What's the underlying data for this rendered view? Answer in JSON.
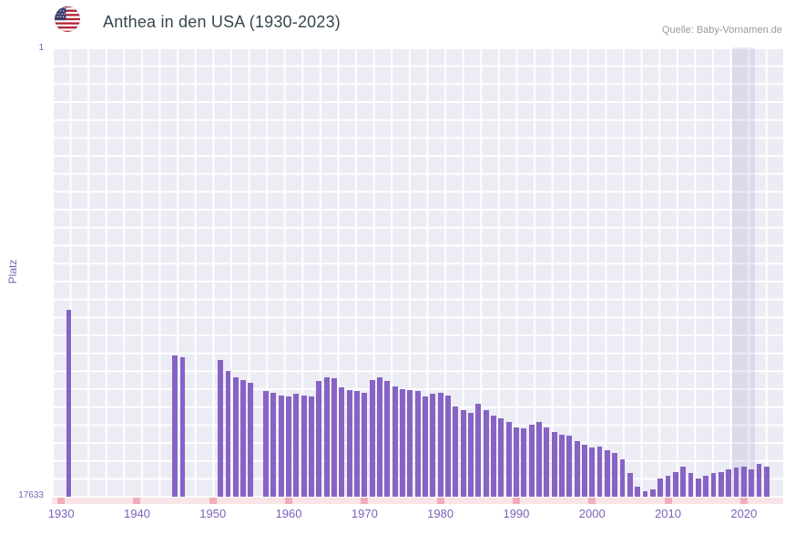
{
  "header": {
    "title": "Anthea in den USA (1930-2023)",
    "source": "Quelle: Baby-Vornamen.de"
  },
  "axis": {
    "y_label": "Platz",
    "y_tick_top": "1",
    "y_tick_bottom": "17633",
    "x_ticks": [
      1930,
      1940,
      1950,
      1960,
      1970,
      1980,
      1990,
      2000,
      2010,
      2020
    ]
  },
  "colors": {
    "bar": "#8763c4",
    "plot_bg": "#ececf5",
    "grid": "#ffffff",
    "axis_text": "#7d62b8",
    "tick_strip": "#f9e4e7",
    "tick_mark": "#f1aeba",
    "highlight_band": "rgba(122,115,176,0.14)",
    "title": "#37474f",
    "source": "#999999",
    "flag_red": "#b22234",
    "flag_blue": "#3c3b6e"
  },
  "chart_data": {
    "type": "bar",
    "title": "Anthea in den USA (1930-2023)",
    "xlabel": "",
    "ylabel": "Platz",
    "ylim": [
      1,
      17633
    ],
    "y_axis_inverted": true,
    "grid": true,
    "legend": false,
    "highlight_years": {
      "from": 2019,
      "to": 2021
    },
    "x": [
      1930,
      1931,
      1932,
      1933,
      1934,
      1935,
      1936,
      1937,
      1938,
      1939,
      1940,
      1941,
      1942,
      1943,
      1944,
      1945,
      1946,
      1947,
      1948,
      1949,
      1950,
      1951,
      1952,
      1953,
      1954,
      1955,
      1956,
      1957,
      1958,
      1959,
      1960,
      1961,
      1962,
      1963,
      1964,
      1965,
      1966,
      1967,
      1968,
      1969,
      1970,
      1971,
      1972,
      1973,
      1974,
      1975,
      1976,
      1977,
      1978,
      1979,
      1980,
      1981,
      1982,
      1983,
      1984,
      1985,
      1986,
      1987,
      1988,
      1989,
      1990,
      1991,
      1992,
      1993,
      1994,
      1995,
      1996,
      1997,
      1998,
      1999,
      2000,
      2001,
      2002,
      2003,
      2004,
      2005,
      2006,
      2007,
      2008,
      2009,
      2010,
      2011,
      2012,
      2013,
      2014,
      2015,
      2016,
      2017,
      2018,
      2019,
      2020,
      2021,
      2022,
      2023
    ],
    "values": [
      null,
      10300,
      null,
      null,
      null,
      null,
      null,
      null,
      null,
      null,
      null,
      null,
      null,
      null,
      null,
      12100,
      12150,
      null,
      null,
      null,
      null,
      12250,
      12700,
      12950,
      13050,
      13150,
      null,
      13500,
      13550,
      13650,
      13700,
      13600,
      13650,
      13700,
      13100,
      12950,
      13000,
      13350,
      13450,
      13500,
      13550,
      13050,
      12950,
      13100,
      13300,
      13400,
      13450,
      13500,
      13700,
      13600,
      13550,
      13650,
      14100,
      14250,
      14350,
      14000,
      14250,
      14450,
      14550,
      14700,
      14900,
      14950,
      14800,
      14700,
      14900,
      15100,
      15200,
      15250,
      15450,
      15600,
      15700,
      15650,
      15800,
      15900,
      16150,
      16700,
      17250,
      17400,
      17350,
      16900,
      16800,
      16650,
      16450,
      16700,
      16900,
      16800,
      16700,
      16650,
      16550,
      16500,
      16450,
      16550,
      16350,
      16450
    ]
  }
}
